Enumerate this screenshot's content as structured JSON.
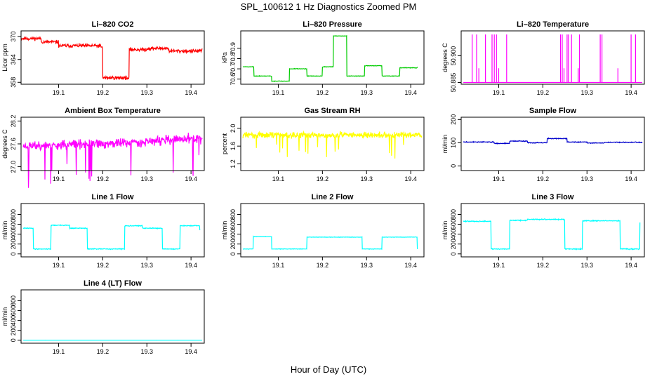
{
  "figure": {
    "title": "SPL_100612  1 Hz Diagnostics Zoomed PM",
    "xlabel": "Hour of Day (UTC)"
  },
  "chart_data": [
    {
      "id": "co2",
      "type": "line",
      "title": "Li–820 CO2",
      "ylabel": "Licor ppm",
      "color": "#ff0000",
      "xlim": [
        19.015,
        19.43
      ],
      "ylim": [
        357.5,
        371.5
      ],
      "xticks": [
        19.1,
        19.2,
        19.3,
        19.4
      ],
      "xtick_labels": [
        "19.1",
        "19.2",
        "19.3",
        "19.4"
      ],
      "yticks": [
        358,
        364,
        370
      ],
      "ytick_labels": [
        "358",
        "364",
        "370"
      ],
      "noise": 0.7,
      "seed": 11,
      "segments": [
        [
          19.015,
          369.5
        ],
        [
          19.06,
          368.6
        ],
        [
          19.1,
          367.6
        ],
        [
          19.195,
          367.2
        ],
        [
          19.2,
          359.2
        ],
        [
          19.255,
          359.0
        ],
        [
          19.26,
          366.6
        ],
        [
          19.3,
          366.9
        ],
        [
          19.35,
          366.2
        ],
        [
          19.425,
          366.8
        ]
      ],
      "steps": true
    },
    {
      "id": "pressure",
      "type": "line",
      "title": "Li–820 Pressure",
      "ylabel": "kPa",
      "color": "#00cc00",
      "xlim": [
        19.015,
        19.43
      ],
      "ylim": [
        70.55,
        71.07
      ],
      "xticks": [
        19.1,
        19.2,
        19.3,
        19.4
      ],
      "xtick_labels": [
        "19.1",
        "19.2",
        "19.3",
        "19.4"
      ],
      "yticks": [
        70.6,
        70.7,
        70.8,
        70.9
      ],
      "ytick_labels": [
        "70.6",
        "70.7",
        "70.8",
        "70.9"
      ],
      "noise": 0.004,
      "seed": 5,
      "segments": [
        [
          19.02,
          70.72
        ],
        [
          19.045,
          70.63
        ],
        [
          19.085,
          70.58
        ],
        [
          19.125,
          70.7
        ],
        [
          19.165,
          70.63
        ],
        [
          19.2,
          70.72
        ],
        [
          19.225,
          71.02
        ],
        [
          19.255,
          70.63
        ],
        [
          19.295,
          70.73
        ],
        [
          19.335,
          70.63
        ],
        [
          19.375,
          70.71
        ],
        [
          19.415,
          70.72
        ]
      ],
      "steps": true
    },
    {
      "id": "licor-temp",
      "type": "line",
      "title": "Li–820 Temperature",
      "ylabel": "degrees C",
      "color": "#ff00ff",
      "xlim": [
        19.015,
        19.43
      ],
      "ylim": [
        50.884,
        50.914
      ],
      "xticks": [
        19.1,
        19.2,
        19.3,
        19.4
      ],
      "xtick_labels": [
        "19.1",
        "19.2",
        "19.3",
        "19.4"
      ],
      "yticks": [
        50.885,
        50.9
      ],
      "ytick_labels": [
        "50.885",
        "50.900"
      ],
      "baseline": 50.885,
      "spikes": [
        [
          19.04,
          50.912
        ],
        [
          19.05,
          50.912
        ],
        [
          19.055,
          50.893
        ],
        [
          19.07,
          50.912
        ],
        [
          19.085,
          50.912
        ],
        [
          19.09,
          50.912
        ],
        [
          19.095,
          50.912
        ],
        [
          19.1,
          50.893
        ],
        [
          19.118,
          50.912
        ],
        [
          19.24,
          50.912
        ],
        [
          19.244,
          50.912
        ],
        [
          19.248,
          50.893
        ],
        [
          19.255,
          50.912
        ],
        [
          19.258,
          50.912
        ],
        [
          19.265,
          50.912
        ],
        [
          19.28,
          50.893
        ],
        [
          19.283,
          50.912
        ],
        [
          19.33,
          50.912
        ],
        [
          19.334,
          50.912
        ],
        [
          19.37,
          50.893
        ],
        [
          19.4,
          50.912
        ],
        [
          19.41,
          50.912
        ]
      ]
    },
    {
      "id": "box-temp",
      "type": "line",
      "title": "Ambient Box Temperature",
      "ylabel": "degrees C",
      "color": "#ff00ff",
      "xlim": [
        19.015,
        19.43
      ],
      "ylim": [
        26.9,
        28.3
      ],
      "xticks": [
        19.1,
        19.2,
        19.3,
        19.4
      ],
      "xtick_labels": [
        "19.1",
        "19.2",
        "19.3",
        "19.4"
      ],
      "yticks": [
        27.0,
        27.6,
        28.2
      ],
      "ytick_labels": [
        "27.0",
        "27.6",
        "28.2"
      ],
      "noise": 0.18,
      "seed": 23,
      "segments": [
        [
          19.02,
          27.55
        ],
        [
          19.2,
          27.6
        ],
        [
          19.425,
          27.75
        ]
      ],
      "steps": false
    },
    {
      "id": "rh",
      "type": "line",
      "title": "Gas Stream RH",
      "ylabel": "percent",
      "color": "#ffff00",
      "xlim": [
        19.015,
        19.43
      ],
      "ylim": [
        1.05,
        2.25
      ],
      "xticks": [
        19.1,
        19.2,
        19.3,
        19.4
      ],
      "xtick_labels": [
        "19.1",
        "19.2",
        "19.3",
        "19.4"
      ],
      "yticks": [
        1.2,
        1.6,
        2.0
      ],
      "ytick_labels": [
        "1.2",
        "1.6",
        "2.0"
      ],
      "noise": 0.1,
      "seed": 31,
      "segments": [
        [
          19.02,
          1.85
        ],
        [
          19.425,
          1.85
        ]
      ],
      "steps": false
    },
    {
      "id": "sample-flow",
      "type": "line",
      "title": "Sample Flow",
      "ylabel": "ml/min",
      "color": "#0000cc",
      "xlim": [
        19.015,
        19.43
      ],
      "ylim": [
        -20,
        210
      ],
      "xticks": [
        19.1,
        19.2,
        19.3,
        19.4
      ],
      "xtick_labels": [
        "19.1",
        "19.2",
        "19.3",
        "19.4"
      ],
      "yticks": [
        0,
        100,
        200
      ],
      "ytick_labels": [
        "0",
        "100",
        "200"
      ],
      "noise": 2.5,
      "seed": 3,
      "segments": [
        [
          19.02,
          103
        ],
        [
          19.09,
          97
        ],
        [
          19.125,
          107
        ],
        [
          19.165,
          100
        ],
        [
          19.21,
          118
        ],
        [
          19.255,
          103
        ],
        [
          19.3,
          99
        ],
        [
          19.34,
          102
        ],
        [
          19.425,
          100
        ]
      ],
      "steps": true
    },
    {
      "id": "line1",
      "type": "line",
      "title": "Line 1 Flow",
      "ylabel": "ml/min",
      "color": "#00ffff",
      "xlim": [
        19.015,
        19.43
      ],
      "ylim": [
        -60,
        1020
      ],
      "xticks": [
        19.1,
        19.2,
        19.3,
        19.4
      ],
      "xtick_labels": [
        "19.1",
        "19.2",
        "19.3",
        "19.4"
      ],
      "yticks": [
        0,
        200,
        400,
        600,
        800
      ],
      "ytick_labels": [
        "0",
        "200",
        "400",
        "600",
        "800"
      ],
      "noise": 12,
      "seed": 41,
      "segments": [
        [
          19.02,
          520
        ],
        [
          19.043,
          100
        ],
        [
          19.083,
          580
        ],
        [
          19.125,
          520
        ],
        [
          19.165,
          100
        ],
        [
          19.25,
          570
        ],
        [
          19.29,
          520
        ],
        [
          19.335,
          100
        ],
        [
          19.375,
          570
        ],
        [
          19.42,
          480
        ]
      ],
      "steps": true
    },
    {
      "id": "line2",
      "type": "line",
      "title": "Line 2 Flow",
      "ylabel": "ml/min",
      "color": "#00ffff",
      "xlim": [
        19.015,
        19.43
      ],
      "ylim": [
        -60,
        1020
      ],
      "xticks": [
        19.1,
        19.2,
        19.3,
        19.4
      ],
      "xtick_labels": [
        "19.1",
        "19.2",
        "19.3",
        "19.4"
      ],
      "yticks": [
        0,
        200,
        400,
        600,
        800
      ],
      "ytick_labels": [
        "0",
        "200",
        "400",
        "600",
        "800"
      ],
      "noise": 6,
      "seed": 43,
      "segments": [
        [
          19.02,
          100
        ],
        [
          19.043,
          350
        ],
        [
          19.085,
          100
        ],
        [
          19.125,
          100
        ],
        [
          19.165,
          340
        ],
        [
          19.29,
          100
        ],
        [
          19.335,
          340
        ],
        [
          19.415,
          100
        ]
      ],
      "steps": true
    },
    {
      "id": "line3",
      "type": "line",
      "title": "Line 3 Flow",
      "ylabel": "ml/min",
      "color": "#00ffff",
      "xlim": [
        19.015,
        19.43
      ],
      "ylim": [
        -60,
        1020
      ],
      "xticks": [
        19.1,
        19.2,
        19.3,
        19.4
      ],
      "xtick_labels": [
        "19.1",
        "19.2",
        "19.3",
        "19.4"
      ],
      "yticks": [
        0,
        200,
        400,
        600,
        800
      ],
      "ytick_labels": [
        "0",
        "200",
        "400",
        "600",
        "800"
      ],
      "noise": 14,
      "seed": 47,
      "segments": [
        [
          19.02,
          660
        ],
        [
          19.083,
          100
        ],
        [
          19.125,
          680
        ],
        [
          19.165,
          700
        ],
        [
          19.25,
          100
        ],
        [
          19.29,
          670
        ],
        [
          19.375,
          100
        ],
        [
          19.42,
          640
        ]
      ],
      "steps": true
    },
    {
      "id": "line4",
      "type": "line",
      "title": "Line 4 (LT) Flow",
      "ylabel": "ml/min",
      "color": "#00ffff",
      "xlim": [
        19.015,
        19.43
      ],
      "ylim": [
        -60,
        1020
      ],
      "xticks": [
        19.1,
        19.2,
        19.3,
        19.4
      ],
      "xtick_labels": [
        "19.1",
        "19.2",
        "19.3",
        "19.4"
      ],
      "yticks": [
        0,
        200,
        400,
        600,
        800
      ],
      "ytick_labels": [
        "0",
        "200",
        "400",
        "600",
        "800"
      ],
      "noise": 0.5,
      "seed": 53,
      "segments": [
        [
          19.02,
          0
        ],
        [
          19.425,
          0
        ]
      ],
      "steps": true
    }
  ]
}
